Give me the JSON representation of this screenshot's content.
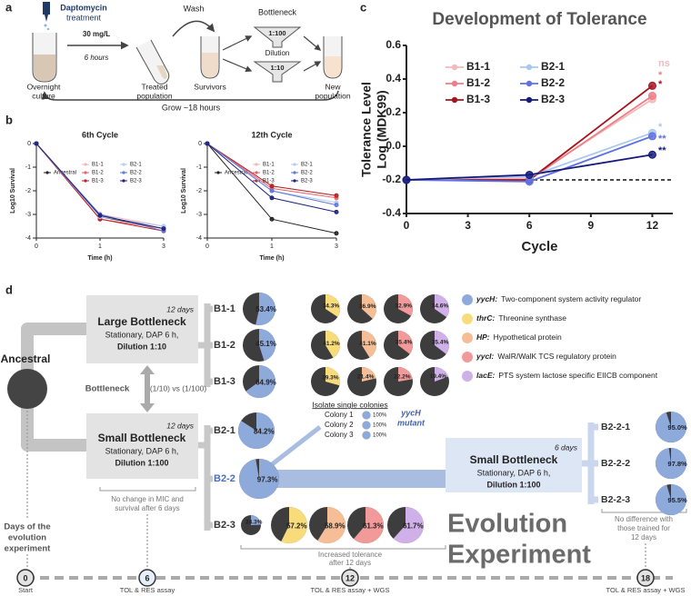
{
  "panel_a": {
    "label": "a",
    "drug": "Daptomycin",
    "treatment": "treatment",
    "concentration": "30 mg/L",
    "duration": "6 hours",
    "steps": [
      [
        "Overnight",
        "culture"
      ],
      [
        "Treated",
        "population"
      ],
      [
        "Survivors"
      ],
      [
        "New",
        "population"
      ]
    ],
    "wash": "Wash",
    "bottleneck": "Bottleneck",
    "ratio_top": "1:100",
    "dilution": "Dilution",
    "ratio_bottom": "1:10",
    "grow": "Grow ~18 hours"
  },
  "chart_data": [
    {
      "type": "line",
      "panel_label": "b",
      "title": "6th Cycle",
      "x_label": "Time (h)",
      "y_label": "Log10 Survival",
      "categories": [
        "0",
        "1",
        "3"
      ],
      "ylim": [
        -4,
        0
      ],
      "yticks": [
        0,
        -1,
        -2,
        -3,
        -4
      ],
      "series": [
        {
          "name": "Ancestral",
          "color": "#222222",
          "values": [
            0,
            -3.1,
            -3.6
          ]
        },
        {
          "name": "B1-1",
          "color": "#f5b5b5",
          "values": [
            0,
            -3.0,
            -3.5
          ]
        },
        {
          "name": "B1-2",
          "color": "#e8636b",
          "values": [
            0,
            -3.2,
            -3.6
          ]
        },
        {
          "name": "B1-3",
          "color": "#b5232a",
          "values": [
            0,
            -3.2,
            -3.7
          ]
        },
        {
          "name": "B2-1",
          "color": "#b3cdee",
          "values": [
            0,
            -3.1,
            -3.5
          ]
        },
        {
          "name": "B2-2",
          "color": "#6077d8",
          "values": [
            0,
            -3.0,
            -3.7
          ]
        },
        {
          "name": "B2-3",
          "color": "#1d2278",
          "values": [
            0,
            -3.05,
            -3.6
          ]
        }
      ]
    },
    {
      "type": "line",
      "title": "12th Cycle",
      "x_label": "Time (h)",
      "y_label": "Log10 Survival",
      "categories": [
        "0",
        "1",
        "3"
      ],
      "ylim": [
        -4,
        0
      ],
      "yticks": [
        0,
        -1,
        -2,
        -3,
        -4
      ],
      "series": [
        {
          "name": "Ancestral",
          "color": "#222222",
          "values": [
            0,
            -3.2,
            -3.8
          ]
        },
        {
          "name": "B1-1",
          "color": "#f5b5b5",
          "values": [
            0,
            -1.8,
            -2.2
          ]
        },
        {
          "name": "B1-2",
          "color": "#e8636b",
          "values": [
            0,
            -1.9,
            -2.3
          ]
        },
        {
          "name": "B1-3",
          "color": "#b5232a",
          "values": [
            0,
            -1.8,
            -2.2
          ]
        },
        {
          "name": "B2-1",
          "color": "#b3cdee",
          "values": [
            0,
            -2.0,
            -2.5
          ]
        },
        {
          "name": "B2-2",
          "color": "#6077d8",
          "values": [
            0,
            -2.0,
            -2.6
          ]
        },
        {
          "name": "B2-3",
          "color": "#1d2278",
          "values": [
            0,
            -2.3,
            -2.9
          ]
        }
      ]
    },
    {
      "type": "line",
      "panel_label": "c",
      "title": "Development of Tolerance",
      "x_label": "Cycle",
      "y_label": [
        "Tolerance Level",
        "Log (MDK99)"
      ],
      "x": [
        0,
        6,
        12
      ],
      "xlim": [
        0,
        13
      ],
      "xticks": [
        0,
        3,
        6,
        9,
        12
      ],
      "ylim": [
        -0.4,
        0.6
      ],
      "yticks": [
        0.6,
        0.4,
        0.2,
        {
          "value": 0,
          "label": "0.0"
        },
        -0.2,
        -0.4
      ],
      "reference_line": -0.2,
      "series": [
        {
          "name": "B1-1",
          "color": "#f3b9bb",
          "values": [
            -0.2,
            -0.19,
            0.28
          ],
          "significance": "ns"
        },
        {
          "name": "B1-2",
          "color": "#ee7e85",
          "values": [
            -0.2,
            -0.2,
            0.3
          ],
          "significance": "*"
        },
        {
          "name": "B1-3",
          "color": "#a3161d",
          "values": [
            -0.2,
            -0.2,
            0.36
          ],
          "significance": "*"
        },
        {
          "name": "B2-1",
          "color": "#a9c8ee",
          "values": [
            -0.2,
            -0.18,
            0.08
          ],
          "significance": "*"
        },
        {
          "name": "B2-2",
          "color": "#5f72e0",
          "values": [
            -0.2,
            -0.21,
            0.06
          ],
          "significance": "**"
        },
        {
          "name": "B2-3",
          "color": "#161a7a",
          "values": [
            -0.2,
            -0.17,
            -0.05
          ],
          "significance": "**"
        }
      ]
    }
  ],
  "panel_d": {
    "label": "d",
    "ancestral": "Ancestral",
    "large": {
      "days": "12 days",
      "title": "Large Bottleneck",
      "condition": "Stationary, DAP 6 h,",
      "dilution": "Dilution 1:10"
    },
    "small": {
      "days": "12 days",
      "title": "Small Bottleneck",
      "condition": "Stationary, DAP 6 h,",
      "dilution": "Dilution 1:100"
    },
    "comparison": {
      "label": "Bottleneck",
      "ratio": "(1/10) vs (1/100)"
    },
    "genes": [
      {
        "name": "yycH:",
        "description": "Two-component system activity regulator",
        "color": "#8eaadb"
      },
      {
        "name": "thrC:",
        "description": "Threonine synthase",
        "color": "#f8dc7c"
      },
      {
        "name": "HP:",
        "description": "Hypothetical protein",
        "color": "#f6be96"
      },
      {
        "name": "yycI:",
        "description": "WalR/WalK TCS regulatory protein",
        "color": "#f29a9a"
      },
      {
        "name": "lacE:",
        "description": "PTS system lactose specific EIICB component",
        "color": "#cfb0e8"
      }
    ],
    "rest_color": "#3d3d3d",
    "populations": [
      {
        "name": "B1-1",
        "values": [
          53.4,
          34.3,
          36.9,
          32.9,
          34.6
        ],
        "value_labels": [
          "53.4%",
          "34.3%",
          "36.9%",
          "32.9%",
          "34.6%"
        ]
      },
      {
        "name": "B1-2",
        "values": [
          45.1,
          41.2,
          41.1,
          35.4,
          35.4
        ],
        "value_labels": [
          "45.1%",
          "41.2%",
          "41.1%",
          "35.4%",
          "35.4%"
        ]
      },
      {
        "name": "B1-3",
        "values": [
          64.9,
          29.3,
          21.4,
          22.2,
          19.4
        ],
        "value_labels": [
          "64.9%",
          "29.3%",
          "21.4%",
          "22.2%",
          "19.4%"
        ]
      },
      {
        "name": "B2-1",
        "values": [
          84.2
        ],
        "value_labels": [
          "84.2%"
        ]
      },
      {
        "name": "B2-2",
        "values": [
          97.3
        ],
        "value_labels": [
          "97.3%"
        ]
      },
      {
        "name": "B2-3",
        "values": [
          24.3,
          57.2,
          58.9,
          61.3,
          61.7
        ],
        "value_labels": [
          "24.3%",
          "57.2%",
          "58.9%",
          "61.3%",
          "61.7%"
        ]
      }
    ],
    "isolation": {
      "title": "Isolate single colonies",
      "colonies": [
        "Colony 1",
        "Colony 2",
        "Colony 3"
      ],
      "values": [
        100,
        100,
        100
      ],
      "value_labels": [
        "100%",
        "100%",
        "100%"
      ],
      "mutant": [
        "yycH",
        "mutant"
      ]
    },
    "rebottleneck": {
      "days": "6 days",
      "title": "Small Bottleneck",
      "condition": "Stationary, DAP 6 h,",
      "dilution": "Dilution 1:100",
      "populations": [
        {
          "name": "B2-2-1",
          "values": [
            95.0
          ],
          "value_labels": [
            "95.0%"
          ]
        },
        {
          "name": "B2-2-2",
          "values": [
            97.8
          ],
          "value_labels": [
            "97.8%"
          ]
        },
        {
          "name": "B2-2-3",
          "values": [
            95.5
          ],
          "value_labels": [
            "95.5%"
          ]
        }
      ]
    },
    "headline": [
      "Evolution",
      "Experiment"
    ],
    "notes": {
      "day6": [
        "No change in MIC and",
        "survival after 6 days"
      ],
      "day12": [
        "Increased tolerance",
        "after 12 days"
      ],
      "day18": [
        "No difference with",
        "those trained for",
        "12 days"
      ],
      "axis": [
        "Days of the",
        "evolution",
        "experiment"
      ]
    },
    "timeline": [
      {
        "day": 0,
        "label": "Start"
      },
      {
        "day": 6,
        "label": "TOL & RES assay"
      },
      {
        "day": 12,
        "label": "TOL & RES assay + WGS"
      },
      {
        "day": 18,
        "label": "TOL & RES assay + WGS"
      }
    ]
  }
}
